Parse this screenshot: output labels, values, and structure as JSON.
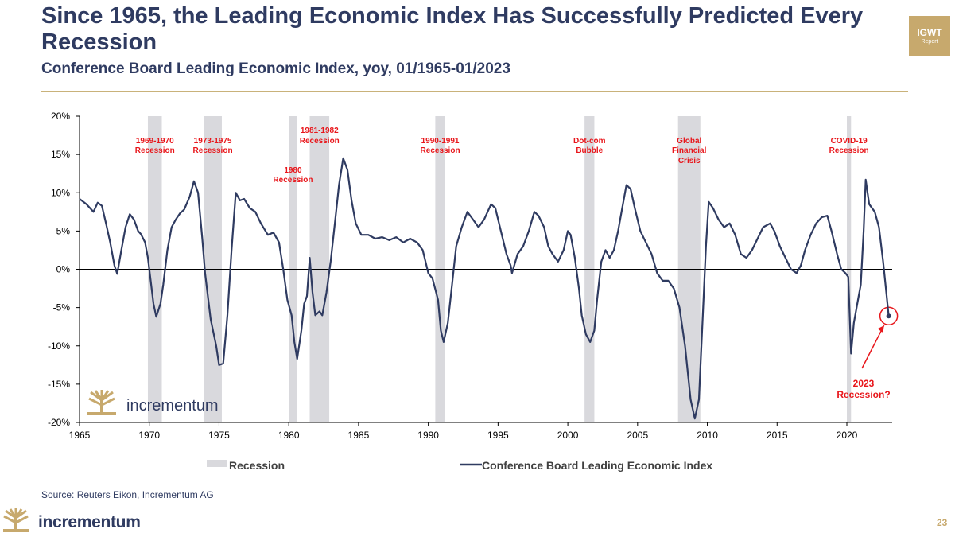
{
  "header": {
    "title": "Since 1965, the Leading Economic Index Has Successfully Predicted Every Recession",
    "subtitle": "Conference Board Leading Economic Index, yoy, 01/1965-01/2023",
    "badge_main": "IGWT",
    "badge_sub": "Report"
  },
  "footer": {
    "source": "Source: Reuters Eikon, Incrementum AG",
    "brand": "incrementum",
    "page_number": "23"
  },
  "watermark": {
    "brand": "incrementum"
  },
  "colors": {
    "line": "#2f3b61",
    "recession": "#d9d9dd",
    "annotation": "#e8161b",
    "brand_gold": "#c7a96d"
  },
  "chart_data": {
    "type": "line",
    "title": "",
    "xlabel": "",
    "ylabel": "",
    "xlim": [
      1965,
      2023.5
    ],
    "ylim": [
      -20,
      20
    ],
    "x_ticks": [
      1965,
      1970,
      1975,
      1980,
      1985,
      1990,
      1995,
      2000,
      2005,
      2010,
      2015,
      2020
    ],
    "y_ticks": [
      20,
      15,
      10,
      5,
      0,
      -5,
      -10,
      -15,
      -20
    ],
    "y_tick_labels": [
      "20%",
      "15%",
      "10%",
      "5%",
      "0%",
      "-5%",
      "-10%",
      "-15%",
      "-20%"
    ],
    "legend": {
      "placement": "bottom",
      "items": [
        "Recession",
        "Conference Board Leading Economic Index"
      ]
    },
    "recessions": [
      {
        "start": 1969.9,
        "end": 1970.9,
        "label": [
          "1969-1970",
          "Recession"
        ]
      },
      {
        "start": 1973.9,
        "end": 1975.2,
        "label": [
          "1973-1975",
          "Recession"
        ]
      },
      {
        "start": 1980.0,
        "end": 1980.6,
        "label": [
          "1980",
          "Recession"
        ]
      },
      {
        "start": 1981.5,
        "end": 1982.9,
        "label": [
          "1981-1982",
          "Recession"
        ]
      },
      {
        "start": 1990.5,
        "end": 1991.2,
        "label": [
          "1990-1991",
          "Recession"
        ]
      },
      {
        "start": 2001.2,
        "end": 2001.9,
        "label": [
          "Dot-com",
          "Bubble"
        ]
      },
      {
        "start": 2007.9,
        "end": 2009.5,
        "label": [
          "Global",
          "Financial",
          "Crisis"
        ]
      },
      {
        "start": 2020.0,
        "end": 2020.3,
        "label": [
          "COVID-19",
          "Recession"
        ]
      }
    ],
    "annotation": {
      "x": 2023.0,
      "y": -6.1,
      "label": [
        "2023",
        "Recession?"
      ]
    },
    "series": [
      {
        "name": "Conference Board Leading Economic Index",
        "points": [
          [
            1965.0,
            9.2
          ],
          [
            1965.5,
            8.5
          ],
          [
            1966.0,
            7.5
          ],
          [
            1966.3,
            8.7
          ],
          [
            1966.6,
            8.3
          ],
          [
            1966.9,
            6.0
          ],
          [
            1967.2,
            3.5
          ],
          [
            1967.5,
            0.5
          ],
          [
            1967.7,
            -0.6
          ],
          [
            1968.0,
            2.5
          ],
          [
            1968.3,
            5.5
          ],
          [
            1968.6,
            7.2
          ],
          [
            1968.9,
            6.5
          ],
          [
            1969.2,
            5.0
          ],
          [
            1969.4,
            4.6
          ],
          [
            1969.7,
            3.5
          ],
          [
            1969.9,
            1.5
          ],
          [
            1970.1,
            -1.5
          ],
          [
            1970.3,
            -4.5
          ],
          [
            1970.5,
            -6.2
          ],
          [
            1970.8,
            -4.5
          ],
          [
            1971.0,
            -2.0
          ],
          [
            1971.3,
            2.5
          ],
          [
            1971.6,
            5.5
          ],
          [
            1971.9,
            6.5
          ],
          [
            1972.2,
            7.3
          ],
          [
            1972.5,
            7.8
          ],
          [
            1972.9,
            9.5
          ],
          [
            1973.2,
            11.5
          ],
          [
            1973.5,
            10.0
          ],
          [
            1973.8,
            4.0
          ],
          [
            1974.0,
            -0.5
          ],
          [
            1974.4,
            -6.5
          ],
          [
            1974.8,
            -10.0
          ],
          [
            1975.0,
            -12.5
          ],
          [
            1975.3,
            -12.3
          ],
          [
            1975.6,
            -6.0
          ],
          [
            1975.9,
            2.5
          ],
          [
            1976.2,
            10.0
          ],
          [
            1976.5,
            9.0
          ],
          [
            1976.8,
            9.2
          ],
          [
            1977.2,
            8.0
          ],
          [
            1977.6,
            7.5
          ],
          [
            1978.0,
            6.0
          ],
          [
            1978.5,
            4.5
          ],
          [
            1978.9,
            4.8
          ],
          [
            1979.3,
            3.5
          ],
          [
            1979.6,
            0.0
          ],
          [
            1979.9,
            -4.0
          ],
          [
            1980.2,
            -6.0
          ],
          [
            1980.4,
            -9.5
          ],
          [
            1980.6,
            -11.7
          ],
          [
            1980.9,
            -8.0
          ],
          [
            1981.1,
            -4.5
          ],
          [
            1981.3,
            -3.5
          ],
          [
            1981.5,
            1.5
          ],
          [
            1981.7,
            -3.0
          ],
          [
            1981.9,
            -6.0
          ],
          [
            1982.2,
            -5.5
          ],
          [
            1982.4,
            -6.0
          ],
          [
            1982.7,
            -3.0
          ],
          [
            1983.0,
            1.0
          ],
          [
            1983.3,
            6.0
          ],
          [
            1983.6,
            11.0
          ],
          [
            1983.9,
            14.5
          ],
          [
            1984.2,
            13.0
          ],
          [
            1984.5,
            9.0
          ],
          [
            1984.8,
            6.0
          ],
          [
            1985.2,
            4.5
          ],
          [
            1985.7,
            4.5
          ],
          [
            1986.2,
            4.0
          ],
          [
            1986.7,
            4.2
          ],
          [
            1987.2,
            3.8
          ],
          [
            1987.7,
            4.2
          ],
          [
            1988.2,
            3.5
          ],
          [
            1988.7,
            4.0
          ],
          [
            1989.2,
            3.5
          ],
          [
            1989.6,
            2.5
          ],
          [
            1990.0,
            -0.5
          ],
          [
            1990.3,
            -1.2
          ],
          [
            1990.7,
            -4.0
          ],
          [
            1990.9,
            -8.0
          ],
          [
            1991.1,
            -9.5
          ],
          [
            1991.4,
            -7.0
          ],
          [
            1991.7,
            -2.0
          ],
          [
            1992.0,
            3.0
          ],
          [
            1992.4,
            5.5
          ],
          [
            1992.8,
            7.5
          ],
          [
            1993.2,
            6.5
          ],
          [
            1993.6,
            5.5
          ],
          [
            1994.0,
            6.5
          ],
          [
            1994.5,
            8.5
          ],
          [
            1994.8,
            8.0
          ],
          [
            1995.2,
            5.0
          ],
          [
            1995.6,
            2.0
          ],
          [
            1995.9,
            0.5
          ],
          [
            1996.0,
            -0.5
          ],
          [
            1996.4,
            2.0
          ],
          [
            1996.8,
            3.0
          ],
          [
            1997.2,
            5.0
          ],
          [
            1997.6,
            7.5
          ],
          [
            1997.9,
            7.0
          ],
          [
            1998.3,
            5.5
          ],
          [
            1998.6,
            3.0
          ],
          [
            1998.9,
            2.0
          ],
          [
            1999.3,
            1.0
          ],
          [
            1999.7,
            2.5
          ],
          [
            2000.0,
            5.0
          ],
          [
            2000.2,
            4.5
          ],
          [
            2000.5,
            1.5
          ],
          [
            2000.8,
            -2.5
          ],
          [
            2001.0,
            -6.0
          ],
          [
            2001.3,
            -8.5
          ],
          [
            2001.6,
            -9.5
          ],
          [
            2001.9,
            -8.0
          ],
          [
            2002.1,
            -4.0
          ],
          [
            2002.4,
            1.0
          ],
          [
            2002.7,
            2.5
          ],
          [
            2003.0,
            1.5
          ],
          [
            2003.3,
            2.5
          ],
          [
            2003.6,
            5.0
          ],
          [
            2003.9,
            8.0
          ],
          [
            2004.2,
            11.0
          ],
          [
            2004.5,
            10.5
          ],
          [
            2004.8,
            8.0
          ],
          [
            2005.2,
            5.0
          ],
          [
            2005.6,
            3.5
          ],
          [
            2006.0,
            2.0
          ],
          [
            2006.4,
            -0.5
          ],
          [
            2006.8,
            -1.5
          ],
          [
            2007.2,
            -1.5
          ],
          [
            2007.6,
            -2.5
          ],
          [
            2008.0,
            -5.0
          ],
          [
            2008.4,
            -10.0
          ],
          [
            2008.8,
            -17.0
          ],
          [
            2009.1,
            -19.5
          ],
          [
            2009.4,
            -17.0
          ],
          [
            2009.7,
            -5.0
          ],
          [
            2009.9,
            3.0
          ],
          [
            2010.1,
            8.8
          ],
          [
            2010.4,
            8.0
          ],
          [
            2010.8,
            6.5
          ],
          [
            2011.2,
            5.5
          ],
          [
            2011.6,
            6.0
          ],
          [
            2012.0,
            4.5
          ],
          [
            2012.4,
            2.0
          ],
          [
            2012.8,
            1.5
          ],
          [
            2013.2,
            2.5
          ],
          [
            2013.6,
            4.0
          ],
          [
            2014.0,
            5.5
          ],
          [
            2014.5,
            6.0
          ],
          [
            2014.8,
            5.0
          ],
          [
            2015.2,
            3.0
          ],
          [
            2015.6,
            1.5
          ],
          [
            2016.0,
            0.0
          ],
          [
            2016.4,
            -0.5
          ],
          [
            2016.7,
            0.5
          ],
          [
            2017.0,
            2.5
          ],
          [
            2017.4,
            4.5
          ],
          [
            2017.8,
            6.0
          ],
          [
            2018.2,
            6.8
          ],
          [
            2018.6,
            7.0
          ],
          [
            2018.9,
            5.0
          ],
          [
            2019.3,
            2.0
          ],
          [
            2019.6,
            0.0
          ],
          [
            2019.9,
            -0.5
          ],
          [
            2020.1,
            -1.0
          ],
          [
            2020.3,
            -11.0
          ],
          [
            2020.5,
            -7.0
          ],
          [
            2020.8,
            -4.0
          ],
          [
            2021.0,
            -2.0
          ],
          [
            2021.2,
            5.0
          ],
          [
            2021.35,
            11.7
          ],
          [
            2021.6,
            8.5
          ],
          [
            2022.0,
            7.5
          ],
          [
            2022.3,
            5.5
          ],
          [
            2022.6,
            1.0
          ],
          [
            2022.8,
            -2.5
          ],
          [
            2023.0,
            -6.1
          ]
        ]
      }
    ]
  }
}
